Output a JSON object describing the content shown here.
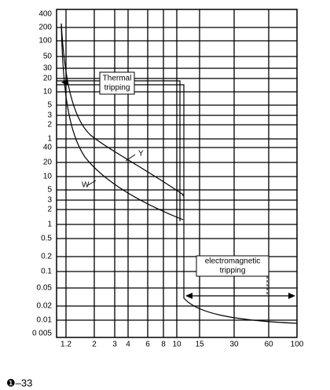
{
  "y_axis_labels": [
    "400",
    "200",
    "100",
    "50",
    "30",
    "20",
    "10",
    "5",
    "3",
    "2",
    "1",
    "40",
    "20",
    "10",
    "5",
    "3",
    "2",
    "1",
    "0.5",
    "0.2",
    "0.1",
    "0.05",
    "0.02",
    "0.01",
    "0 005"
  ],
  "x_axis_labels": [
    "1.2",
    "2",
    "3",
    "4",
    "6",
    "8",
    "10",
    "15",
    "30",
    "60",
    "100"
  ],
  "annotations": {
    "thermal": [
      "Thermal",
      "tripping"
    ],
    "electromagnetic": [
      "electromagnetic",
      "tripping"
    ],
    "curve_y": "Y",
    "curve_w": "W"
  },
  "figure_label": "❶–33"
}
